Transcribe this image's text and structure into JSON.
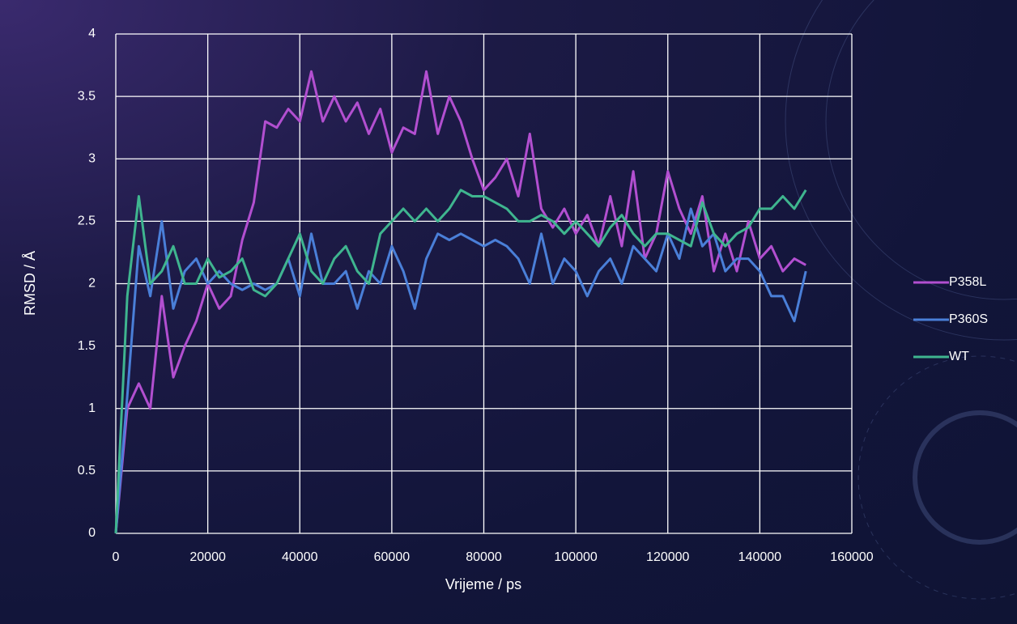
{
  "chart_data": {
    "type": "line",
    "x_label": "Vrijeme / ps",
    "y_label": "RMSD / Å",
    "x": [
      0,
      2500,
      5000,
      7500,
      10000,
      12500,
      15000,
      17500,
      20000,
      22500,
      25000,
      27500,
      30000,
      32500,
      35000,
      37500,
      40000,
      42500,
      45000,
      47500,
      50000,
      52500,
      55000,
      57500,
      60000,
      62500,
      65000,
      67500,
      70000,
      72500,
      75000,
      77500,
      80000,
      82500,
      85000,
      87500,
      90000,
      92500,
      95000,
      97500,
      100000,
      102500,
      105000,
      107500,
      110000,
      112500,
      115000,
      117500,
      120000,
      122500,
      125000,
      127500,
      130000,
      132500,
      135000,
      137500,
      140000,
      142500,
      145000,
      147500,
      150000
    ],
    "series": [
      {
        "name": "P358L",
        "color": "#b24fd0",
        "values": [
          0,
          1.0,
          1.2,
          1.0,
          1.9,
          1.25,
          1.5,
          1.7,
          2.0,
          1.8,
          1.9,
          2.35,
          2.65,
          3.3,
          3.25,
          3.4,
          3.3,
          3.7,
          3.3,
          3.5,
          3.3,
          3.45,
          3.2,
          3.4,
          3.05,
          3.25,
          3.2,
          3.7,
          3.2,
          3.5,
          3.3,
          3.0,
          2.75,
          2.85,
          3.0,
          2.7,
          3.2,
          2.6,
          2.45,
          2.6,
          2.4,
          2.55,
          2.3,
          2.7,
          2.3,
          2.9,
          2.2,
          2.4,
          2.9,
          2.6,
          2.4,
          2.7,
          2.1,
          2.4,
          2.1,
          2.5,
          2.2,
          2.3,
          2.1,
          2.2,
          2.15
        ]
      },
      {
        "name": "P360S",
        "color": "#4a7fd8",
        "values": [
          0,
          1.1,
          2.3,
          1.9,
          2.5,
          1.8,
          2.1,
          2.2,
          2.0,
          2.1,
          2.0,
          1.95,
          2.0,
          1.95,
          2.0,
          2.2,
          1.9,
          2.4,
          2.0,
          2.0,
          2.1,
          1.8,
          2.1,
          2.0,
          2.3,
          2.1,
          1.8,
          2.2,
          2.4,
          2.35,
          2.4,
          2.35,
          2.3,
          2.35,
          2.3,
          2.2,
          2.0,
          2.4,
          2.0,
          2.2,
          2.1,
          1.9,
          2.1,
          2.2,
          2.0,
          2.3,
          2.2,
          2.1,
          2.4,
          2.2,
          2.6,
          2.3,
          2.4,
          2.1,
          2.2,
          2.2,
          2.1,
          1.9,
          1.9,
          1.7,
          2.1
        ]
      },
      {
        "name": "WT",
        "color": "#3fb58f",
        "values": [
          0,
          1.9,
          2.7,
          2.0,
          2.1,
          2.3,
          2.0,
          2.0,
          2.2,
          2.05,
          2.1,
          2.2,
          1.95,
          1.9,
          2.0,
          2.2,
          2.4,
          2.1,
          2.0,
          2.2,
          2.3,
          2.1,
          2.0,
          2.4,
          2.5,
          2.6,
          2.5,
          2.6,
          2.5,
          2.6,
          2.75,
          2.7,
          2.7,
          2.65,
          2.6,
          2.5,
          2.5,
          2.55,
          2.5,
          2.4,
          2.5,
          2.4,
          2.3,
          2.45,
          2.55,
          2.4,
          2.3,
          2.4,
          2.4,
          2.35,
          2.3,
          2.65,
          2.4,
          2.3,
          2.4,
          2.45,
          2.6,
          2.6,
          2.7,
          2.6,
          2.75
        ]
      }
    ],
    "xlim": [
      0,
      160000
    ],
    "xticks": [
      0,
      20000,
      40000,
      60000,
      80000,
      100000,
      120000,
      140000,
      160000
    ],
    "ylim": [
      0,
      4
    ],
    "yticks": [
      0,
      0.5,
      1,
      1.5,
      2,
      2.5,
      3,
      3.5,
      4
    ],
    "grid": true,
    "legend": "right"
  }
}
